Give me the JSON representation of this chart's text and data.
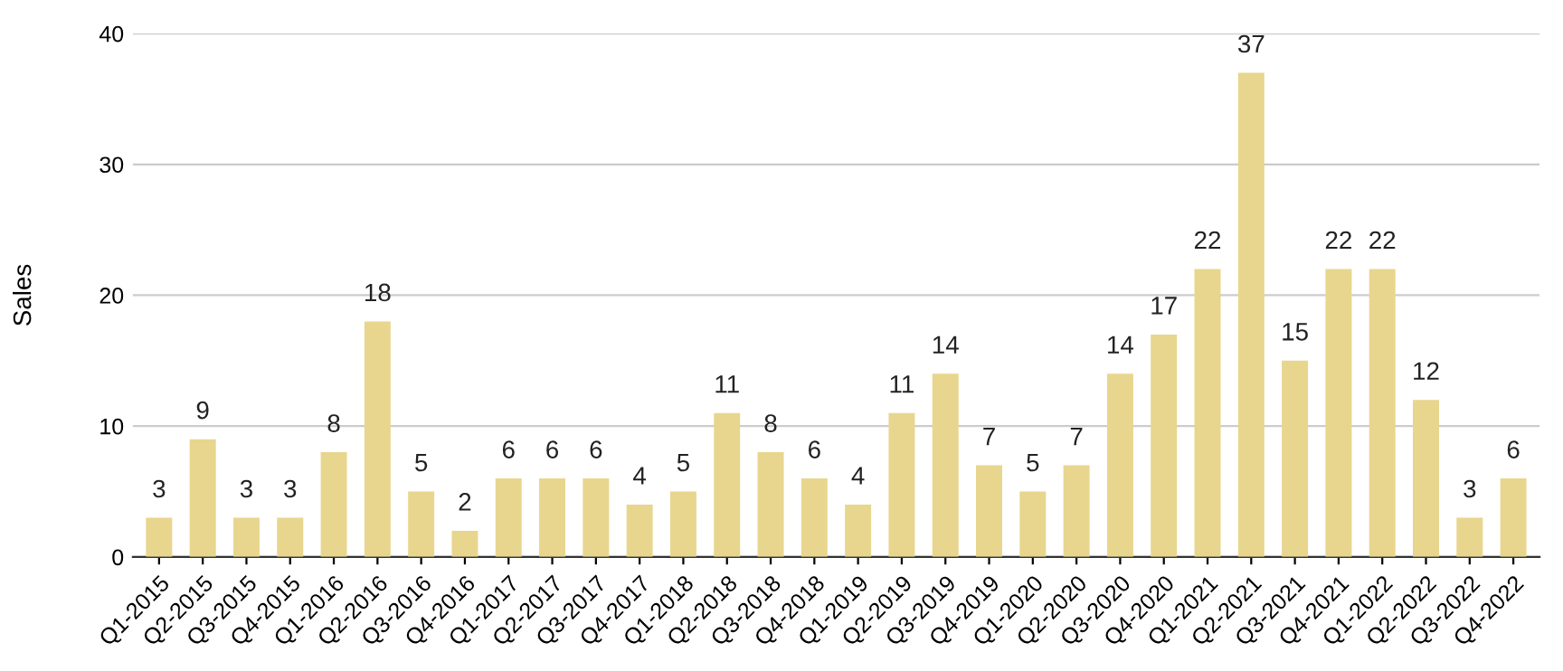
{
  "chart_data": {
    "type": "bar",
    "ylabel": "Sales",
    "categories": [
      "Q1-2015",
      "Q2-2015",
      "Q3-2015",
      "Q4-2015",
      "Q1-2016",
      "Q2-2016",
      "Q3-2016",
      "Q4-2016",
      "Q1-2017",
      "Q2-2017",
      "Q3-2017",
      "Q4-2017",
      "Q1-2018",
      "Q2-2018",
      "Q3-2018",
      "Q4-2018",
      "Q1-2019",
      "Q2-2019",
      "Q3-2019",
      "Q4-2019",
      "Q1-2020",
      "Q2-2020",
      "Q3-2020",
      "Q4-2020",
      "Q1-2021",
      "Q2-2021",
      "Q3-2021",
      "Q4-2021",
      "Q1-2022",
      "Q2-2022",
      "Q3-2022",
      "Q4-2022"
    ],
    "values": [
      3,
      9,
      3,
      3,
      8,
      18,
      5,
      2,
      6,
      6,
      6,
      4,
      5,
      11,
      8,
      6,
      4,
      11,
      14,
      7,
      5,
      7,
      14,
      17,
      22,
      37,
      15,
      22,
      22,
      12,
      3,
      6
    ],
    "color": "#e8d68e",
    "ylim": [
      0,
      40
    ],
    "yticks": [
      0,
      10,
      20,
      30,
      40
    ],
    "grid": "y",
    "data_labels": true,
    "legend": false
  }
}
